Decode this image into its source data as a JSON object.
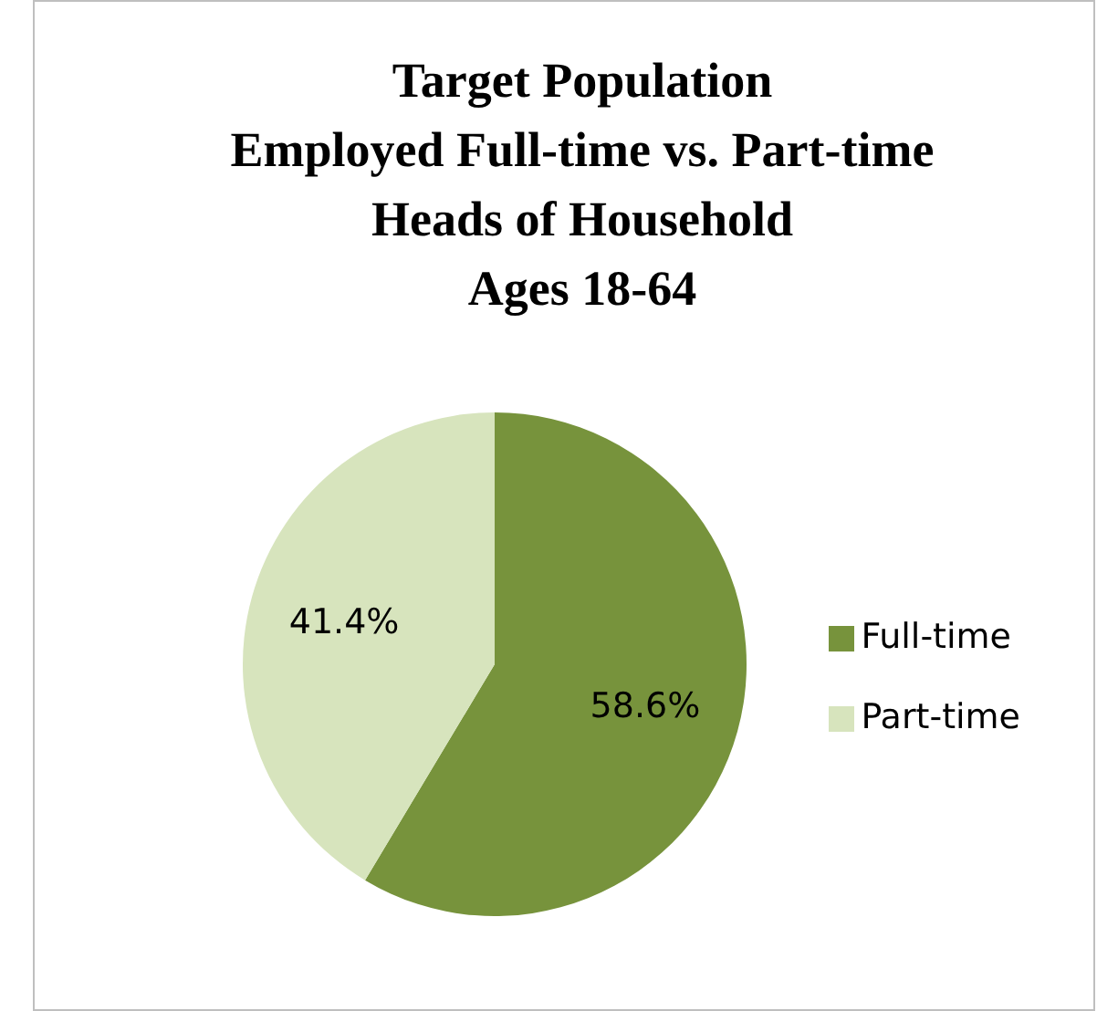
{
  "chart_data": {
    "type": "pie",
    "title": "Target Population\nEmployed Full-time vs. Part-time\nHeads of Household\nAges 18-64",
    "categories": [
      "Full-time",
      "Part-time"
    ],
    "values": [
      58.6,
      41.4
    ],
    "colors": [
      "#77933c",
      "#d7e4bd"
    ],
    "value_labels": [
      "58.6%",
      "41.4%"
    ],
    "legend": "right"
  }
}
